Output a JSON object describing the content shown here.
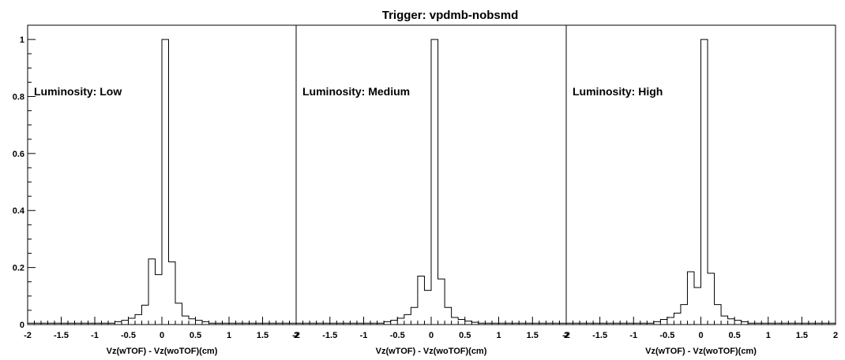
{
  "title": "Trigger: vpdmb-nobsmd",
  "chart_data": [
    {
      "type": "histogram",
      "annotation": "Luminosity: Low",
      "xlabel": "Vz(wTOF) - Vz(woTOF)(cm)",
      "ylabel": "",
      "xlim": [
        -2,
        2
      ],
      "ylim": [
        0,
        1.05
      ],
      "x_tick_labels": [
        "-2",
        "-1.5",
        "-1",
        "-0.5",
        "0",
        "0.5",
        "1",
        "1.5",
        "2"
      ],
      "y_tick_labels": [
        "0",
        "0.2",
        "0.4",
        "0.6",
        "0.8",
        "1"
      ],
      "bin_edges": [
        -0.7,
        -0.6,
        -0.5,
        -0.4,
        -0.3,
        -0.2,
        -0.1,
        0.0,
        0.1,
        0.2,
        0.3,
        0.4,
        0.5,
        0.6,
        0.7
      ],
      "values": [
        0.01,
        0.015,
        0.022,
        0.035,
        0.068,
        0.23,
        0.175,
        1.0,
        0.22,
        0.075,
        0.03,
        0.02,
        0.015,
        0.01
      ],
      "baseline": 0.005
    },
    {
      "type": "histogram",
      "annotation": "Luminosity: Medium",
      "xlabel": "Vz(wTOF) - Vz(woTOF)(cm)",
      "ylabel": "",
      "xlim": [
        -2,
        2
      ],
      "ylim": [
        0,
        1.05
      ],
      "x_tick_labels": [
        "-2",
        "-1.5",
        "-1",
        "-0.5",
        "0",
        "0.5",
        "1",
        "1.5",
        "2"
      ],
      "y_tick_labels": [],
      "bin_edges": [
        -0.7,
        -0.6,
        -0.5,
        -0.4,
        -0.3,
        -0.2,
        -0.1,
        0.0,
        0.1,
        0.2,
        0.3,
        0.4,
        0.5,
        0.6,
        0.7
      ],
      "values": [
        0.01,
        0.015,
        0.022,
        0.035,
        0.06,
        0.17,
        0.12,
        1.0,
        0.16,
        0.06,
        0.025,
        0.018,
        0.012,
        0.008
      ],
      "baseline": 0.005
    },
    {
      "type": "histogram",
      "annotation": "Luminosity: High",
      "xlabel": "Vz(wTOF) - Vz(woTOF)(cm)",
      "ylabel": "",
      "xlim": [
        -2,
        2
      ],
      "ylim": [
        0,
        1.05
      ],
      "x_tick_labels": [
        "-2",
        "-1.5",
        "-1",
        "-0.5",
        "0",
        "0.5",
        "1",
        "1.5",
        "2"
      ],
      "y_tick_labels": [],
      "bin_edges": [
        -0.7,
        -0.6,
        -0.5,
        -0.4,
        -0.3,
        -0.2,
        -0.1,
        0.0,
        0.1,
        0.2,
        0.3,
        0.4,
        0.5,
        0.6,
        0.7
      ],
      "values": [
        0.01,
        0.018,
        0.025,
        0.04,
        0.07,
        0.185,
        0.13,
        1.0,
        0.18,
        0.07,
        0.03,
        0.02,
        0.015,
        0.01
      ],
      "baseline": 0.005
    }
  ]
}
